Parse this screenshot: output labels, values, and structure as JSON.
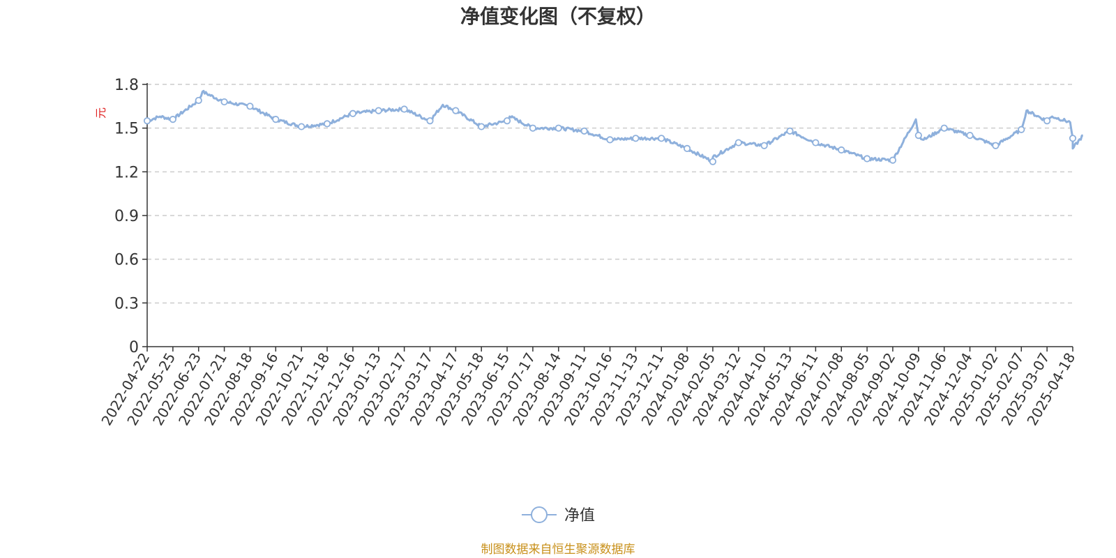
{
  "chart_data": {
    "type": "line",
    "title": "净值变化图（不复权）",
    "ylabel": "元",
    "ylim": [
      0,
      1.8
    ],
    "yticks": [
      "0",
      "0.3",
      "0.6",
      "0.9",
      "1.2",
      "1.5",
      "1.8"
    ],
    "grid": true,
    "legend_placement": "bottom-center",
    "line_color": "#8eb0dc",
    "categories": [
      "2022-04-22",
      "2022-05-25",
      "2022-06-23",
      "2022-07-21",
      "2022-08-18",
      "2022-09-16",
      "2022-10-21",
      "2022-11-18",
      "2022-12-16",
      "2023-01-13",
      "2023-02-17",
      "2023-03-17",
      "2023-04-17",
      "2023-05-18",
      "2023-06-15",
      "2023-07-17",
      "2023-08-14",
      "2023-09-11",
      "2023-10-16",
      "2023-11-13",
      "2023-12-11",
      "2024-01-08",
      "2024-02-05",
      "2024-03-12",
      "2024-04-10",
      "2024-05-13",
      "2024-06-11",
      "2024-07-08",
      "2024-08-05",
      "2024-09-02",
      "2024-10-09",
      "2024-11-06",
      "2024-12-04",
      "2025-01-02",
      "2025-02-07",
      "2025-03-07",
      "2025-04-18"
    ],
    "series": [
      {
        "name": "净值",
        "values": [
          1.55,
          1.56,
          1.69,
          1.68,
          1.65,
          1.56,
          1.51,
          1.53,
          1.6,
          1.62,
          1.63,
          1.55,
          1.62,
          1.51,
          1.55,
          1.5,
          1.5,
          1.48,
          1.42,
          1.43,
          1.43,
          1.36,
          1.27,
          1.4,
          1.38,
          1.48,
          1.4,
          1.35,
          1.29,
          1.28,
          1.45,
          1.5,
          1.45,
          1.38,
          1.49,
          1.55,
          1.43
        ]
      }
    ],
    "extra_points": [
      {
        "x_index": 0.5,
        "y": 1.58
      },
      {
        "x_index": 2.15,
        "y": 1.75
      },
      {
        "x_index": 11.5,
        "y": 1.66
      },
      {
        "x_index": 14.1,
        "y": 1.58
      },
      {
        "x_index": 22.0,
        "y": 1.3
      },
      {
        "x_index": 29.9,
        "y": 1.56
      },
      {
        "x_index": 30.2,
        "y": 1.42
      },
      {
        "x_index": 34.2,
        "y": 1.62
      },
      {
        "x_index": 35.2,
        "y": 1.58
      },
      {
        "x_index": 35.9,
        "y": 1.54
      },
      {
        "x_index": 36.0,
        "y": 1.36
      },
      {
        "x_index": 36.4,
        "y": 1.45
      }
    ]
  },
  "legend": {
    "label": "净值"
  },
  "source": "制图数据来自恒生聚源数据库"
}
